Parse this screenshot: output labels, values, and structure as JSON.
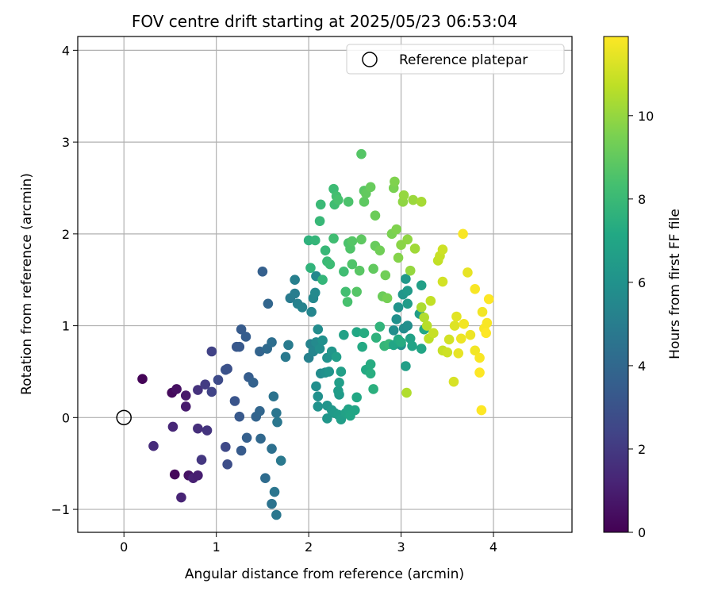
{
  "chart_data": {
    "type": "scatter",
    "title": "FOV centre drift starting at 2025/05/23 06:53:04",
    "xlabel": "Angular distance from reference (arcmin)",
    "ylabel": "Rotation from reference (arcmin)",
    "xlim": [
      -0.5,
      4.85
    ],
    "ylim": [
      -1.25,
      4.15
    ],
    "xticks": [
      0,
      1,
      2,
      3,
      4
    ],
    "yticks": [
      -1,
      0,
      1,
      2,
      3,
      4
    ],
    "grid": true,
    "legend": {
      "position": "top-right",
      "entries": [
        "Reference platepar"
      ]
    },
    "reference_point": {
      "x": 0,
      "y": 0,
      "label": "Reference platepar"
    },
    "colorbar": {
      "label": "Hours from first FF file",
      "range": [
        0,
        11.9
      ],
      "ticks": [
        0,
        2,
        4,
        6,
        8,
        10
      ],
      "colormap": "viridis"
    },
    "points": [
      {
        "x": 0.2,
        "y": 0.42,
        "h": 0.1
      },
      {
        "x": 0.52,
        "y": 0.27,
        "h": 0.3
      },
      {
        "x": 0.57,
        "y": 0.31,
        "h": 0.5
      },
      {
        "x": 0.67,
        "y": 0.24,
        "h": 0.8
      },
      {
        "x": 0.67,
        "y": 0.12,
        "h": 0.9
      },
      {
        "x": 0.55,
        "y": -0.62,
        "h": 0.2
      },
      {
        "x": 0.7,
        "y": -0.63,
        "h": 0.6
      },
      {
        "x": 0.75,
        "y": -0.66,
        "h": 1.1
      },
      {
        "x": 0.8,
        "y": -0.63,
        "h": 1.0
      },
      {
        "x": 0.62,
        "y": -0.87,
        "h": 1.2
      },
      {
        "x": 0.53,
        "y": -0.1,
        "h": 1.3
      },
      {
        "x": 0.32,
        "y": -0.31,
        "h": 1.5
      },
      {
        "x": 0.8,
        "y": -0.12,
        "h": 1.6
      },
      {
        "x": 0.9,
        "y": -0.14,
        "h": 1.8
      },
      {
        "x": 0.84,
        "y": -0.46,
        "h": 1.9
      },
      {
        "x": 0.8,
        "y": 0.3,
        "h": 1.7
      },
      {
        "x": 0.88,
        "y": 0.36,
        "h": 2.1
      },
      {
        "x": 0.95,
        "y": 0.28,
        "h": 2.4
      },
      {
        "x": 0.95,
        "y": 0.72,
        "h": 2.3
      },
      {
        "x": 1.02,
        "y": 0.41,
        "h": 2.7
      },
      {
        "x": 1.12,
        "y": 0.53,
        "h": 2.9
      },
      {
        "x": 1.1,
        "y": 0.52,
        "h": 3.0
      },
      {
        "x": 1.1,
        "y": -0.32,
        "h": 2.6
      },
      {
        "x": 1.12,
        "y": -0.51,
        "h": 2.8
      },
      {
        "x": 1.22,
        "y": 0.77,
        "h": 3.2
      },
      {
        "x": 1.25,
        "y": 0.77,
        "h": 3.3
      },
      {
        "x": 1.27,
        "y": 0.96,
        "h": 3.4
      },
      {
        "x": 1.32,
        "y": 0.88,
        "h": 3.5
      },
      {
        "x": 1.2,
        "y": 0.18,
        "h": 3.1
      },
      {
        "x": 1.25,
        "y": 0.01,
        "h": 3.3
      },
      {
        "x": 1.27,
        "y": -0.36,
        "h": 3.4
      },
      {
        "x": 1.33,
        "y": -0.22,
        "h": 3.6
      },
      {
        "x": 1.35,
        "y": 0.44,
        "h": 3.5
      },
      {
        "x": 1.4,
        "y": 0.38,
        "h": 3.7
      },
      {
        "x": 1.43,
        "y": 0.01,
        "h": 3.8
      },
      {
        "x": 1.47,
        "y": 0.07,
        "h": 3.9
      },
      {
        "x": 1.47,
        "y": 0.72,
        "h": 3.8
      },
      {
        "x": 1.48,
        "y": -0.23,
        "h": 4.0
      },
      {
        "x": 1.5,
        "y": 1.59,
        "h": 3.6
      },
      {
        "x": 1.56,
        "y": 1.24,
        "h": 3.9
      },
      {
        "x": 1.55,
        "y": 0.75,
        "h": 4.1
      },
      {
        "x": 1.6,
        "y": 0.82,
        "h": 4.3
      },
      {
        "x": 1.53,
        "y": -0.66,
        "h": 4.2
      },
      {
        "x": 1.6,
        "y": -0.34,
        "h": 4.4
      },
      {
        "x": 1.6,
        "y": -0.94,
        "h": 4.5
      },
      {
        "x": 1.63,
        "y": -0.81,
        "h": 4.6
      },
      {
        "x": 1.65,
        "y": -1.06,
        "h": 4.7
      },
      {
        "x": 1.62,
        "y": 0.23,
        "h": 4.5
      },
      {
        "x": 1.65,
        "y": 0.05,
        "h": 4.6
      },
      {
        "x": 1.66,
        "y": -0.05,
        "h": 4.7
      },
      {
        "x": 1.7,
        "y": -0.47,
        "h": 4.8
      },
      {
        "x": 1.75,
        "y": 0.66,
        "h": 4.8
      },
      {
        "x": 1.78,
        "y": 0.79,
        "h": 4.9
      },
      {
        "x": 1.8,
        "y": 1.3,
        "h": 4.9
      },
      {
        "x": 1.85,
        "y": 1.35,
        "h": 5.0
      },
      {
        "x": 1.85,
        "y": 1.5,
        "h": 5.1
      },
      {
        "x": 1.88,
        "y": 1.24,
        "h": 5.2
      },
      {
        "x": 1.93,
        "y": 1.2,
        "h": 5.3
      },
      {
        "x": 2.0,
        "y": 0.65,
        "h": 5.2
      },
      {
        "x": 2.02,
        "y": 0.8,
        "h": 5.3
      },
      {
        "x": 2.03,
        "y": 1.15,
        "h": 5.4
      },
      {
        "x": 2.05,
        "y": 1.3,
        "h": 5.5
      },
      {
        "x": 2.07,
        "y": 1.36,
        "h": 5.6
      },
      {
        "x": 2.08,
        "y": 1.54,
        "h": 5.5
      },
      {
        "x": 2.05,
        "y": 0.72,
        "h": 5.4
      },
      {
        "x": 2.08,
        "y": 0.82,
        "h": 5.6
      },
      {
        "x": 2.1,
        "y": 0.96,
        "h": 5.7
      },
      {
        "x": 2.12,
        "y": 0.75,
        "h": 5.8
      },
      {
        "x": 2.15,
        "y": 0.84,
        "h": 5.9
      },
      {
        "x": 2.13,
        "y": 0.48,
        "h": 5.7
      },
      {
        "x": 2.08,
        "y": 0.34,
        "h": 5.8
      },
      {
        "x": 2.1,
        "y": 0.23,
        "h": 5.9
      },
      {
        "x": 2.1,
        "y": 0.12,
        "h": 6.0
      },
      {
        "x": 2.18,
        "y": 0.49,
        "h": 5.9
      },
      {
        "x": 2.2,
        "y": 0.65,
        "h": 6.0
      },
      {
        "x": 2.22,
        "y": 0.5,
        "h": 6.1
      },
      {
        "x": 2.25,
        "y": 0.72,
        "h": 6.2
      },
      {
        "x": 2.2,
        "y": 0.13,
        "h": 6.1
      },
      {
        "x": 2.2,
        "y": -0.01,
        "h": 6.2
      },
      {
        "x": 2.25,
        "y": 0.08,
        "h": 6.3
      },
      {
        "x": 2.28,
        "y": 0.05,
        "h": 6.4
      },
      {
        "x": 2.32,
        "y": 0.03,
        "h": 6.5
      },
      {
        "x": 2.35,
        "y": -0.02,
        "h": 6.6
      },
      {
        "x": 2.33,
        "y": 0.25,
        "h": 6.4
      },
      {
        "x": 2.32,
        "y": 0.29,
        "h": 6.5
      },
      {
        "x": 2.33,
        "y": 0.38,
        "h": 6.6
      },
      {
        "x": 2.35,
        "y": 0.5,
        "h": 6.7
      },
      {
        "x": 2.3,
        "y": 0.66,
        "h": 6.6
      },
      {
        "x": 2.4,
        "y": 0.05,
        "h": 6.8
      },
      {
        "x": 2.43,
        "y": 0.09,
        "h": 6.9
      },
      {
        "x": 2.45,
        "y": 0.02,
        "h": 7.0
      },
      {
        "x": 2.5,
        "y": 0.08,
        "h": 7.0
      },
      {
        "x": 2.52,
        "y": 0.22,
        "h": 7.1
      },
      {
        "x": 2.38,
        "y": 0.9,
        "h": 6.8
      },
      {
        "x": 2.52,
        "y": 0.93,
        "h": 7.1
      },
      {
        "x": 2.58,
        "y": 0.77,
        "h": 7.2
      },
      {
        "x": 2.6,
        "y": 0.92,
        "h": 7.3
      },
      {
        "x": 2.62,
        "y": 0.52,
        "h": 7.2
      },
      {
        "x": 2.67,
        "y": 0.58,
        "h": 7.3
      },
      {
        "x": 2.67,
        "y": 0.48,
        "h": 7.4
      },
      {
        "x": 2.7,
        "y": 0.31,
        "h": 7.5
      },
      {
        "x": 2.73,
        "y": 0.87,
        "h": 7.6
      },
      {
        "x": 2.77,
        "y": 0.99,
        "h": 7.7
      },
      {
        "x": 2.82,
        "y": 0.78,
        "h": 7.8
      },
      {
        "x": 2.87,
        "y": 0.8,
        "h": 7.9
      },
      {
        "x": 2.92,
        "y": 0.95,
        "h": 5.8
      },
      {
        "x": 2.95,
        "y": 1.07,
        "h": 5.9
      },
      {
        "x": 2.97,
        "y": 1.2,
        "h": 6.1
      },
      {
        "x": 3.02,
        "y": 1.34,
        "h": 6.2
      },
      {
        "x": 3.05,
        "y": 1.51,
        "h": 6.3
      },
      {
        "x": 3.07,
        "y": 1.38,
        "h": 6.4
      },
      {
        "x": 3.07,
        "y": 1.24,
        "h": 6.5
      },
      {
        "x": 3.03,
        "y": 0.97,
        "h": 5.7
      },
      {
        "x": 3.07,
        "y": 1.0,
        "h": 5.8
      },
      {
        "x": 3.0,
        "y": 0.79,
        "h": 6.0
      },
      {
        "x": 3.05,
        "y": 0.56,
        "h": 6.7
      },
      {
        "x": 3.1,
        "y": 0.86,
        "h": 6.8
      },
      {
        "x": 3.12,
        "y": 0.78,
        "h": 6.9
      },
      {
        "x": 3.2,
        "y": 1.13,
        "h": 6.6
      },
      {
        "x": 3.22,
        "y": 1.44,
        "h": 6.7
      },
      {
        "x": 3.22,
        "y": 0.75,
        "h": 7.0
      },
      {
        "x": 3.25,
        "y": 0.96,
        "h": 7.1
      },
      {
        "x": 2.92,
        "y": 0.79,
        "h": 7.0
      },
      {
        "x": 2.97,
        "y": 0.85,
        "h": 7.2
      },
      {
        "x": 3.0,
        "y": 0.82,
        "h": 7.3
      },
      {
        "x": 2.0,
        "y": 1.93,
        "h": 7.6
      },
      {
        "x": 2.02,
        "y": 1.63,
        "h": 7.7
      },
      {
        "x": 2.07,
        "y": 1.93,
        "h": 7.8
      },
      {
        "x": 2.12,
        "y": 2.14,
        "h": 7.9
      },
      {
        "x": 2.13,
        "y": 2.32,
        "h": 8.0
      },
      {
        "x": 2.15,
        "y": 1.5,
        "h": 7.8
      },
      {
        "x": 2.18,
        "y": 1.82,
        "h": 7.9
      },
      {
        "x": 2.2,
        "y": 1.7,
        "h": 8.0
      },
      {
        "x": 2.23,
        "y": 1.67,
        "h": 8.1
      },
      {
        "x": 2.27,
        "y": 1.95,
        "h": 8.2
      },
      {
        "x": 2.27,
        "y": 2.49,
        "h": 8.1
      },
      {
        "x": 2.28,
        "y": 2.32,
        "h": 8.2
      },
      {
        "x": 2.3,
        "y": 2.41,
        "h": 8.3
      },
      {
        "x": 2.32,
        "y": 2.37,
        "h": 8.4
      },
      {
        "x": 2.38,
        "y": 1.59,
        "h": 8.2
      },
      {
        "x": 2.4,
        "y": 1.37,
        "h": 8.3
      },
      {
        "x": 2.42,
        "y": 1.26,
        "h": 8.4
      },
      {
        "x": 2.43,
        "y": 1.9,
        "h": 8.5
      },
      {
        "x": 2.45,
        "y": 1.84,
        "h": 8.6
      },
      {
        "x": 2.47,
        "y": 1.92,
        "h": 8.7
      },
      {
        "x": 2.43,
        "y": 2.35,
        "h": 8.5
      },
      {
        "x": 2.47,
        "y": 1.67,
        "h": 8.6
      },
      {
        "x": 2.52,
        "y": 1.37,
        "h": 8.7
      },
      {
        "x": 2.55,
        "y": 1.6,
        "h": 8.8
      },
      {
        "x": 2.57,
        "y": 1.94,
        "h": 8.9
      },
      {
        "x": 2.57,
        "y": 2.87,
        "h": 8.7
      },
      {
        "x": 2.6,
        "y": 2.47,
        "h": 8.8
      },
      {
        "x": 2.6,
        "y": 2.35,
        "h": 8.9
      },
      {
        "x": 2.62,
        "y": 2.44,
        "h": 9.0
      },
      {
        "x": 2.67,
        "y": 2.51,
        "h": 9.1
      },
      {
        "x": 2.7,
        "y": 1.62,
        "h": 9.0
      },
      {
        "x": 2.72,
        "y": 1.87,
        "h": 9.1
      },
      {
        "x": 2.72,
        "y": 2.2,
        "h": 9.2
      },
      {
        "x": 2.77,
        "y": 1.82,
        "h": 9.3
      },
      {
        "x": 2.8,
        "y": 1.32,
        "h": 9.2
      },
      {
        "x": 2.83,
        "y": 1.55,
        "h": 9.3
      },
      {
        "x": 2.85,
        "y": 1.3,
        "h": 9.4
      },
      {
        "x": 2.9,
        "y": 2.0,
        "h": 9.5
      },
      {
        "x": 2.92,
        "y": 2.5,
        "h": 9.5
      },
      {
        "x": 2.93,
        "y": 2.57,
        "h": 9.6
      },
      {
        "x": 2.95,
        "y": 2.05,
        "h": 9.6
      },
      {
        "x": 2.97,
        "y": 1.74,
        "h": 9.7
      },
      {
        "x": 3.0,
        "y": 1.88,
        "h": 9.8
      },
      {
        "x": 3.02,
        "y": 2.35,
        "h": 9.9
      },
      {
        "x": 3.03,
        "y": 2.42,
        "h": 10.0
      },
      {
        "x": 3.07,
        "y": 1.94,
        "h": 9.9
      },
      {
        "x": 3.1,
        "y": 1.6,
        "h": 10.0
      },
      {
        "x": 3.13,
        "y": 2.37,
        "h": 10.1
      },
      {
        "x": 3.15,
        "y": 1.84,
        "h": 10.2
      },
      {
        "x": 3.22,
        "y": 2.35,
        "h": 10.3
      },
      {
        "x": 3.22,
        "y": 1.2,
        "h": 10.4
      },
      {
        "x": 3.25,
        "y": 1.09,
        "h": 10.5
      },
      {
        "x": 3.28,
        "y": 1.0,
        "h": 10.6
      },
      {
        "x": 3.3,
        "y": 0.86,
        "h": 10.7
      },
      {
        "x": 3.32,
        "y": 1.27,
        "h": 10.8
      },
      {
        "x": 3.35,
        "y": 0.92,
        "h": 10.9
      },
      {
        "x": 3.4,
        "y": 1.71,
        "h": 10.8
      },
      {
        "x": 3.42,
        "y": 1.76,
        "h": 10.9
      },
      {
        "x": 3.45,
        "y": 1.83,
        "h": 11.0
      },
      {
        "x": 3.45,
        "y": 1.48,
        "h": 11.1
      },
      {
        "x": 3.45,
        "y": 0.73,
        "h": 10.9
      },
      {
        "x": 3.5,
        "y": 0.71,
        "h": 11.0
      },
      {
        "x": 3.52,
        "y": 0.85,
        "h": 11.1
      },
      {
        "x": 3.57,
        "y": 0.39,
        "h": 11.2
      },
      {
        "x": 3.58,
        "y": 1.0,
        "h": 11.3
      },
      {
        "x": 3.6,
        "y": 1.1,
        "h": 11.4
      },
      {
        "x": 3.62,
        "y": 0.7,
        "h": 11.5
      },
      {
        "x": 3.65,
        "y": 0.86,
        "h": 11.6
      },
      {
        "x": 3.68,
        "y": 1.02,
        "h": 11.7
      },
      {
        "x": 3.67,
        "y": 2.0,
        "h": 11.8
      },
      {
        "x": 3.72,
        "y": 1.58,
        "h": 11.5
      },
      {
        "x": 3.75,
        "y": 0.9,
        "h": 11.6
      },
      {
        "x": 3.8,
        "y": 0.73,
        "h": 11.7
      },
      {
        "x": 3.8,
        "y": 1.4,
        "h": 11.8
      },
      {
        "x": 3.85,
        "y": 0.49,
        "h": 11.9
      },
      {
        "x": 3.85,
        "y": 0.65,
        "h": 11.8
      },
      {
        "x": 3.87,
        "y": 0.08,
        "h": 11.9
      },
      {
        "x": 3.88,
        "y": 1.15,
        "h": 11.7
      },
      {
        "x": 3.9,
        "y": 0.97,
        "h": 11.8
      },
      {
        "x": 3.92,
        "y": 0.92,
        "h": 11.9
      },
      {
        "x": 3.95,
        "y": 1.29,
        "h": 11.9
      },
      {
        "x": 3.93,
        "y": 1.03,
        "h": 11.8
      },
      {
        "x": 3.06,
        "y": 0.27,
        "h": 10.5
      }
    ]
  }
}
